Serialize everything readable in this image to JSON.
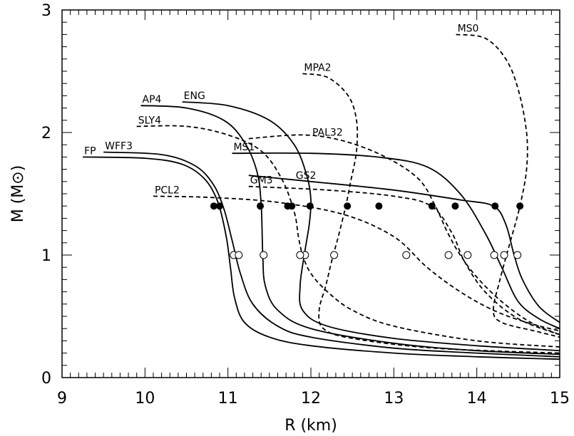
{
  "chart_data": {
    "type": "line",
    "xlabel": "R (km)",
    "ylabel": "M (M⊙)",
    "xlim": [
      9,
      15
    ],
    "ylim": [
      0,
      3
    ],
    "x_ticks": [
      "9",
      "10",
      "11",
      "12",
      "13",
      "14",
      "15"
    ],
    "y_ticks": [
      "0",
      "1",
      "2",
      "3"
    ],
    "grid": false,
    "legend": "none",
    "series": [
      {
        "name": "FP",
        "style": "solid",
        "points": [
          [
            9.25,
            1.8
          ],
          [
            10.0,
            1.79
          ],
          [
            10.45,
            1.74
          ],
          [
            10.72,
            1.62
          ],
          [
            10.88,
            1.43
          ],
          [
            10.98,
            1.15
          ],
          [
            11.03,
            0.9
          ],
          [
            11.08,
            0.65
          ],
          [
            11.2,
            0.45
          ],
          [
            11.5,
            0.33
          ],
          [
            12.0,
            0.26
          ],
          [
            13.0,
            0.2
          ],
          [
            14.0,
            0.17
          ],
          [
            15.0,
            0.15
          ]
        ],
        "filled_marker": [
          10.83,
          1.4
        ],
        "open_marker": [
          11.07,
          1.0
        ]
      },
      {
        "name": "WFF3",
        "style": "solid",
        "points": [
          [
            9.5,
            1.84
          ],
          [
            10.2,
            1.82
          ],
          [
            10.6,
            1.73
          ],
          [
            10.82,
            1.58
          ],
          [
            10.95,
            1.38
          ],
          [
            11.05,
            1.12
          ],
          [
            11.15,
            0.85
          ],
          [
            11.3,
            0.6
          ],
          [
            11.6,
            0.42
          ],
          [
            12.0,
            0.33
          ],
          [
            13.0,
            0.24
          ],
          [
            14.0,
            0.2
          ],
          [
            15.0,
            0.17
          ]
        ],
        "filled_marker": [
          10.9,
          1.4
        ],
        "open_marker": [
          11.13,
          1.0
        ]
      },
      {
        "name": "AP4",
        "style": "solid",
        "points": [
          [
            9.95,
            2.22
          ],
          [
            10.5,
            2.2
          ],
          [
            10.95,
            2.1
          ],
          [
            11.2,
            1.92
          ],
          [
            11.35,
            1.68
          ],
          [
            11.4,
            1.42
          ],
          [
            11.42,
            1.0
          ],
          [
            11.45,
            0.75
          ],
          [
            11.6,
            0.55
          ],
          [
            12.0,
            0.4
          ],
          [
            13.0,
            0.28
          ],
          [
            14.0,
            0.22
          ],
          [
            15.0,
            0.19
          ]
        ],
        "filled_marker": [
          11.39,
          1.4
        ],
        "open_marker": [
          11.43,
          1.0
        ]
      },
      {
        "name": "ENG",
        "style": "solid",
        "points": [
          [
            10.45,
            2.25
          ],
          [
            11.0,
            2.22
          ],
          [
            11.5,
            2.1
          ],
          [
            11.8,
            1.9
          ],
          [
            11.95,
            1.65
          ],
          [
            12.0,
            1.45
          ],
          [
            11.98,
            1.25
          ],
          [
            11.92,
            1.0
          ],
          [
            11.87,
            0.75
          ],
          [
            11.9,
            0.55
          ],
          [
            12.2,
            0.42
          ],
          [
            13.0,
            0.32
          ],
          [
            14.0,
            0.26
          ],
          [
            15.0,
            0.22
          ]
        ],
        "filled_marker": [
          11.99,
          1.4
        ],
        "open_marker": [
          11.93,
          1.0
        ]
      },
      {
        "name": "MS1",
        "style": "solid",
        "points": [
          [
            11.05,
            1.83
          ],
          [
            12.0,
            1.83
          ],
          [
            12.8,
            1.8
          ],
          [
            13.4,
            1.72
          ],
          [
            13.8,
            1.5
          ],
          [
            14.1,
            1.18
          ],
          [
            14.3,
            0.9
          ],
          [
            14.5,
            0.62
          ],
          [
            14.75,
            0.48
          ],
          [
            15.0,
            0.4
          ]
        ],
        "filled_marker": [
          13.74,
          1.4
        ],
        "open_marker": [
          14.21,
          1.0
        ]
      },
      {
        "name": "GS2",
        "style": "solid",
        "points": [
          [
            11.25,
            1.65
          ],
          [
            12.0,
            1.6
          ],
          [
            13.0,
            1.53
          ],
          [
            13.8,
            1.45
          ],
          [
            14.2,
            1.4
          ],
          [
            14.35,
            1.25
          ],
          [
            14.45,
            1.0
          ],
          [
            14.55,
            0.8
          ],
          [
            14.75,
            0.58
          ],
          [
            15.0,
            0.45
          ]
        ],
        "filled_marker": [
          14.22,
          1.4
        ],
        "open_marker": [
          14.49,
          1.0
        ]
      },
      {
        "name": "SLY4",
        "style": "dashed",
        "points": [
          [
            9.9,
            2.05
          ],
          [
            10.5,
            2.05
          ],
          [
            11.0,
            1.98
          ],
          [
            11.4,
            1.85
          ],
          [
            11.65,
            1.62
          ],
          [
            11.8,
            1.35
          ],
          [
            11.85,
            1.15
          ],
          [
            11.9,
            1.0
          ],
          [
            12.0,
            0.85
          ],
          [
            12.2,
            0.7
          ],
          [
            12.5,
            0.55
          ],
          [
            13.0,
            0.42
          ],
          [
            14.0,
            0.3
          ],
          [
            15.0,
            0.25
          ]
        ],
        "filled_marker": [
          11.72,
          1.4
        ],
        "open_marker": [
          11.87,
          1.0
        ]
      },
      {
        "name": "PCL2",
        "style": "dashed",
        "points": [
          [
            10.1,
            1.48
          ],
          [
            10.8,
            1.47
          ],
          [
            11.6,
            1.43
          ],
          [
            12.4,
            1.33
          ],
          [
            13.0,
            1.15
          ],
          [
            13.4,
            0.9
          ],
          [
            13.8,
            0.7
          ],
          [
            14.2,
            0.55
          ],
          [
            14.6,
            0.45
          ],
          [
            15.0,
            0.38
          ]
        ],
        "filled_marker": [
          11.77,
          1.4
        ],
        "open_marker": [
          13.15,
          1.0
        ]
      },
      {
        "name": "GM3",
        "style": "dashed",
        "points": [
          [
            11.25,
            1.56
          ],
          [
            12.2,
            1.53
          ],
          [
            13.0,
            1.48
          ],
          [
            13.45,
            1.4
          ],
          [
            13.7,
            1.18
          ],
          [
            13.85,
            0.95
          ],
          [
            14.1,
            0.7
          ],
          [
            14.5,
            0.48
          ],
          [
            15.0,
            0.35
          ]
        ],
        "filled_marker": [
          12.82,
          1.4
        ],
        "open_marker": [
          13.66,
          1.0
        ]
      },
      {
        "name": "PAL32",
        "style": "dashed",
        "points": [
          [
            11.25,
            1.95
          ],
          [
            11.9,
            1.98
          ],
          [
            12.4,
            1.93
          ],
          [
            12.9,
            1.8
          ],
          [
            13.3,
            1.62
          ],
          [
            13.5,
            1.4
          ],
          [
            13.65,
            1.18
          ],
          [
            13.8,
            1.0
          ],
          [
            14.0,
            0.82
          ],
          [
            14.3,
            0.62
          ],
          [
            14.65,
            0.45
          ],
          [
            15.0,
            0.35
          ]
        ],
        "filled_marker": [
          13.46,
          1.4
        ],
        "open_marker": [
          13.89,
          1.0
        ]
      },
      {
        "name": "MPA2",
        "style": "dashed",
        "points": [
          [
            11.9,
            2.48
          ],
          [
            12.2,
            2.45
          ],
          [
            12.45,
            2.3
          ],
          [
            12.55,
            2.1
          ],
          [
            12.55,
            1.85
          ],
          [
            12.48,
            1.6
          ],
          [
            12.42,
            1.4
          ],
          [
            12.33,
            1.15
          ],
          [
            12.25,
            0.95
          ],
          [
            12.18,
            0.75
          ],
          [
            12.1,
            0.55
          ],
          [
            12.15,
            0.4
          ],
          [
            12.5,
            0.32
          ],
          [
            13.5,
            0.24
          ],
          [
            15.0,
            0.2
          ]
        ],
        "filled_marker": [
          12.44,
          1.4
        ],
        "open_marker": [
          12.28,
          1.0
        ]
      },
      {
        "name": "MS0",
        "style": "dashed",
        "points": [
          [
            13.75,
            2.8
          ],
          [
            14.1,
            2.77
          ],
          [
            14.35,
            2.6
          ],
          [
            14.5,
            2.35
          ],
          [
            14.6,
            2.0
          ],
          [
            14.6,
            1.7
          ],
          [
            14.52,
            1.4
          ],
          [
            14.4,
            1.1
          ],
          [
            14.28,
            0.8
          ],
          [
            14.2,
            0.55
          ],
          [
            14.3,
            0.45
          ],
          [
            14.7,
            0.38
          ],
          [
            15.0,
            0.33
          ]
        ],
        "filled_marker": [
          14.52,
          1.4
        ],
        "open_marker": [
          14.33,
          1.0
        ]
      }
    ],
    "annotations": [
      {
        "text": "FP",
        "x": 9.25,
        "y": 1.8
      },
      {
        "text": "WFF3",
        "x": 9.5,
        "y": 1.84
      },
      {
        "text": "AP4",
        "x": 9.95,
        "y": 2.22
      },
      {
        "text": "ENG",
        "x": 10.45,
        "y": 2.25
      },
      {
        "text": "SLY4",
        "x": 9.9,
        "y": 2.05
      },
      {
        "text": "PCL2",
        "x": 10.1,
        "y": 1.48
      },
      {
        "text": "GM3",
        "x": 11.25,
        "y": 1.56
      },
      {
        "text": "GS2",
        "x": 11.8,
        "y": 1.6
      },
      {
        "text": "MS1",
        "x": 11.05,
        "y": 1.83
      },
      {
        "text": "PAL32",
        "x": 12.0,
        "y": 1.95
      },
      {
        "text": "MPA2",
        "x": 11.9,
        "y": 2.48
      },
      {
        "text": "MS0",
        "x": 13.75,
        "y": 2.8
      }
    ]
  }
}
